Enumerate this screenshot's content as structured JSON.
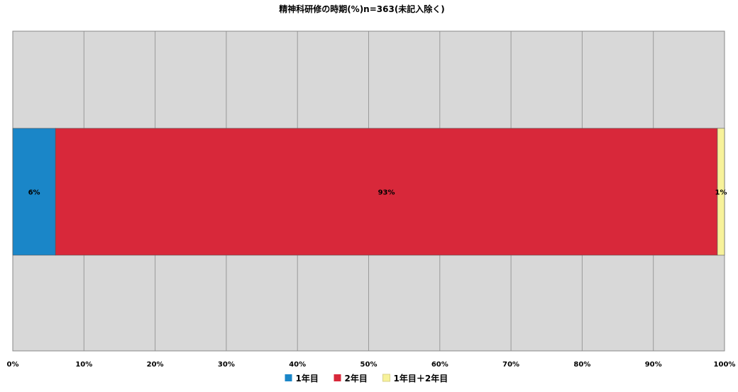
{
  "chart_data": {
    "type": "bar",
    "orientation": "horizontal",
    "stacked": true,
    "normalized_percent": true,
    "title": "精神科研修の時期(%)n=363(未記入除く)",
    "xlabel": "",
    "ylabel": "",
    "xlim": [
      0,
      100
    ],
    "x_ticks": [
      "0%",
      "10%",
      "20%",
      "30%",
      "40%",
      "50%",
      "60%",
      "70%",
      "80%",
      "90%",
      "100%"
    ],
    "grid": true,
    "legend_position": "bottom",
    "series": [
      {
        "name": "1年目",
        "value": 6,
        "label": "6%",
        "color": "#1a86c8"
      },
      {
        "name": "2年目",
        "value": 93,
        "label": "93%",
        "color": "#d8283a"
      },
      {
        "name": "1年目＋2年目",
        "value": 1,
        "label": "1%",
        "color": "#f7f29a"
      }
    ],
    "plot_background": "#d8d8d8"
  }
}
